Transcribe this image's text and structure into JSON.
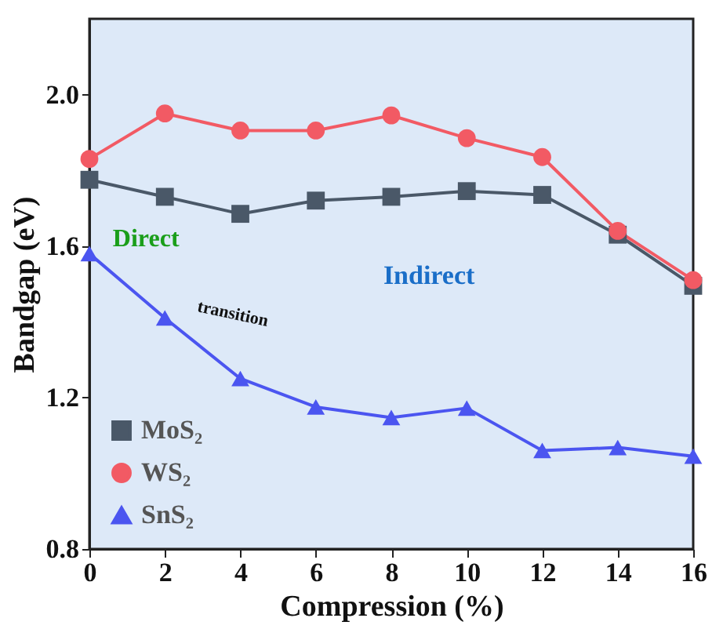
{
  "chart_data": {
    "type": "line",
    "xlabel": "Compression (%)",
    "ylabel": "Bandgap (eV)",
    "x": [
      0,
      2,
      4,
      6,
      8,
      10,
      12,
      14,
      16
    ],
    "series": [
      {
        "name": "MoS₂",
        "color": "#4a5868",
        "marker": "square",
        "values": [
          1.775,
          1.73,
          1.685,
          1.72,
          1.73,
          1.745,
          1.735,
          1.63,
          1.495
        ]
      },
      {
        "name": "WS₂",
        "color": "#f25a64",
        "marker": "circle",
        "values": [
          1.83,
          1.95,
          1.905,
          1.905,
          1.945,
          1.885,
          1.835,
          1.64,
          1.51
        ]
      },
      {
        "name": "SnS₂",
        "color": "#4b55f0",
        "marker": "triangle",
        "values": [
          1.58,
          1.41,
          1.25,
          1.175,
          1.147,
          1.172,
          1.06,
          1.068,
          1.045
        ]
      }
    ],
    "xlim": [
      0,
      16
    ],
    "xticks": [
      0,
      2,
      4,
      6,
      8,
      10,
      12,
      14,
      16
    ],
    "ylim": [
      0.8,
      2.2
    ],
    "yticks": [
      0.8,
      1.2,
      1.6,
      {
        "value": 2,
        "label": "2.0"
      }
    ],
    "annotations": [
      "Direct",
      "transition",
      "Indirect"
    ],
    "grid": false,
    "legend": "bottom left",
    "line_style": "solid"
  }
}
